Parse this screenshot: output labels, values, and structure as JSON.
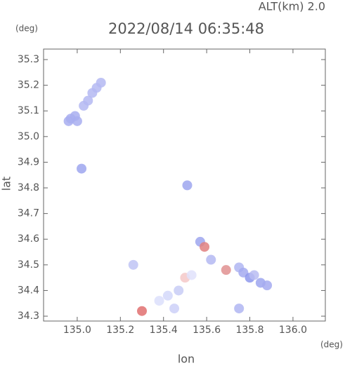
{
  "chart_data": {
    "type": "scatter",
    "title": "2022/08/14 06:35:48",
    "altitude_label": "ALT(km) 2.0",
    "x_unit": "(deg)",
    "y_unit": "(deg)",
    "x_label": "lon",
    "y_label": "lat",
    "xlim": [
      134.844,
      136.15
    ],
    "ylim": [
      34.281,
      35.341
    ],
    "xticks": [
      {
        "value": 135,
        "label": "135.0"
      },
      135.2,
      135.4,
      135.6,
      135.8,
      {
        "value": 136,
        "label": "136.0"
      }
    ],
    "yticks": [
      34.3,
      34.4,
      34.5,
      34.6,
      34.7,
      34.8,
      34.9,
      {
        "value": 35,
        "label": "35.0"
      },
      35.1,
      35.2,
      35.3
    ],
    "x": [
      134.97,
      134.99,
      134.96,
      135.0,
      135.03,
      135.05,
      135.07,
      135.09,
      135.11,
      135.02,
      135.51,
      135.26,
      135.42,
      135.38,
      135.45,
      135.47,
      135.3,
      135.5,
      135.53,
      135.57,
      135.59,
      135.62,
      135.69,
      135.75,
      135.77,
      135.8,
      135.82,
      135.85,
      135.75,
      135.88
    ],
    "y": [
      35.07,
      35.08,
      35.06,
      35.06,
      35.12,
      35.14,
      35.17,
      35.19,
      35.21,
      34.875,
      34.81,
      34.5,
      34.38,
      34.36,
      34.33,
      34.4,
      34.32,
      34.45,
      34.46,
      34.59,
      34.57,
      34.52,
      34.48,
      34.49,
      34.47,
      34.45,
      34.46,
      34.43,
      34.33,
      34.42
    ],
    "colors": [
      "#a8aef0",
      "#a8aef0",
      "#a8aef0",
      "#a8aef0",
      "#b4b8f2",
      "#b4b8f2",
      "#b4b8f2",
      "#b4b8f2",
      "#b4b8f2",
      "#9ea6ee",
      "#9ea6ee",
      "#c0c4f4",
      "#d4d8fa",
      "#dcdffb",
      "#ccd0f8",
      "#c8ccf6",
      "#e07070",
      "#f4c8c8",
      "#e0e2fc",
      "#9ea6ee",
      "#e08080",
      "#b4b8f2",
      "#e09090",
      "#b0b6f2",
      "#a4aaf0",
      "#8e98ec",
      "#b8bcf2",
      "#9ea6ee",
      "#b0b6f2",
      "#a4aaf0"
    ]
  }
}
